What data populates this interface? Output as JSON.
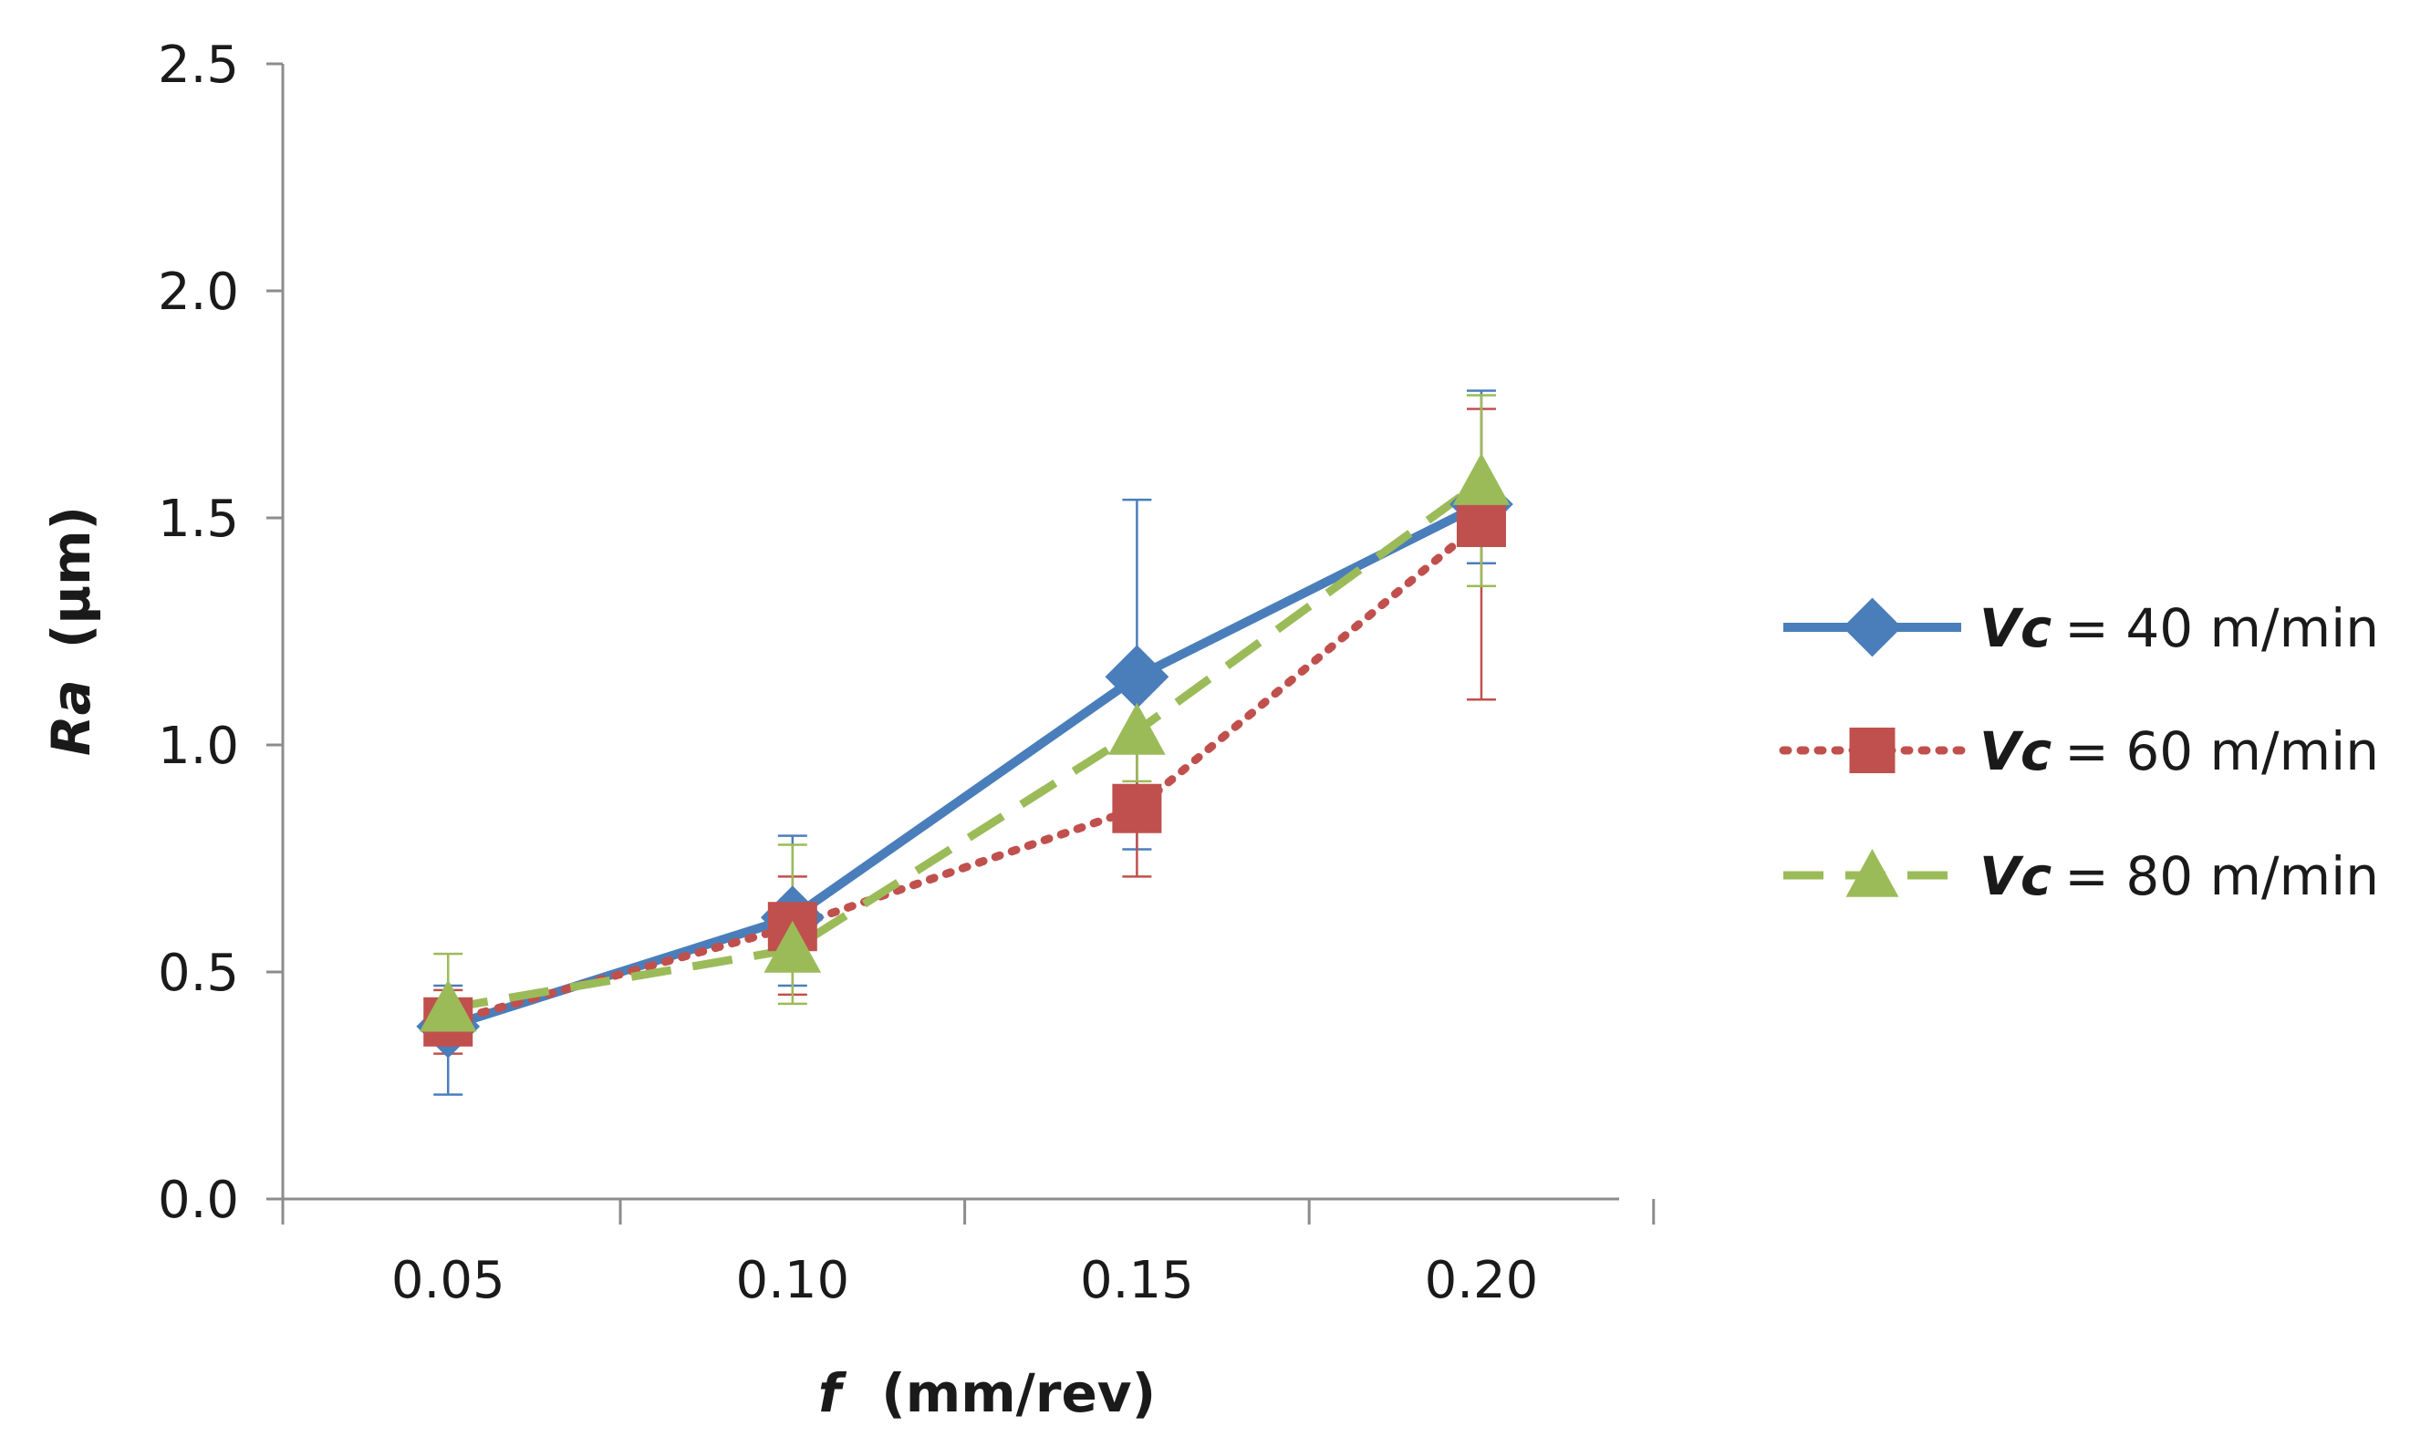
{
  "chart_data": {
    "type": "line",
    "xlabel_symbol": "f",
    "xlabel_unit": "(mm/rev)",
    "ylabel_symbol": "Ra",
    "ylabel_unit": "(µm)",
    "x": [
      0.05,
      0.1,
      0.15,
      0.2
    ],
    "x_tick_labels": [
      "0.05",
      "0.10",
      "0.15",
      "0.20"
    ],
    "xlim": [
      0.026,
      0.22
    ],
    "ylim": [
      0.0,
      2.5
    ],
    "y_ticks": [
      0.0,
      0.5,
      1.0,
      1.5,
      2.0,
      2.5
    ],
    "y_tick_labels": [
      "0.0",
      "0.5",
      "1.0",
      "1.5",
      "2.0",
      "2.5"
    ],
    "grid": false,
    "legend_position": "right",
    "series": [
      {
        "name_prefix": "Vc",
        "name_suffix": "= 40 m/min",
        "values": [
          0.38,
          0.62,
          1.15,
          1.53
        ],
        "error_low": [
          0.23,
          0.47,
          0.77,
          1.4
        ],
        "error_high": [
          0.47,
          0.8,
          1.54,
          1.78
        ],
        "color": "#4a7ebb",
        "line_style": "solid",
        "marker": "diamond"
      },
      {
        "name_prefix": "Vc",
        "name_suffix": "= 60 m/min",
        "values": [
          0.39,
          0.6,
          0.86,
          1.49
        ],
        "error_low": [
          0.32,
          0.45,
          0.71,
          1.1
        ],
        "error_high": [
          0.46,
          0.71,
          1.01,
          1.74
        ],
        "color": "#c0504d",
        "line_style": "dotted",
        "marker": "square"
      },
      {
        "name_prefix": "Vc",
        "name_suffix": "= 80 m/min",
        "values": [
          0.42,
          0.55,
          1.03,
          1.58
        ],
        "error_low": [
          0.35,
          0.43,
          0.92,
          1.35
        ],
        "error_high": [
          0.54,
          0.78,
          1.16,
          1.77
        ],
        "color": "#9bbb59",
        "line_style": "dashed",
        "marker": "triangle"
      }
    ]
  }
}
